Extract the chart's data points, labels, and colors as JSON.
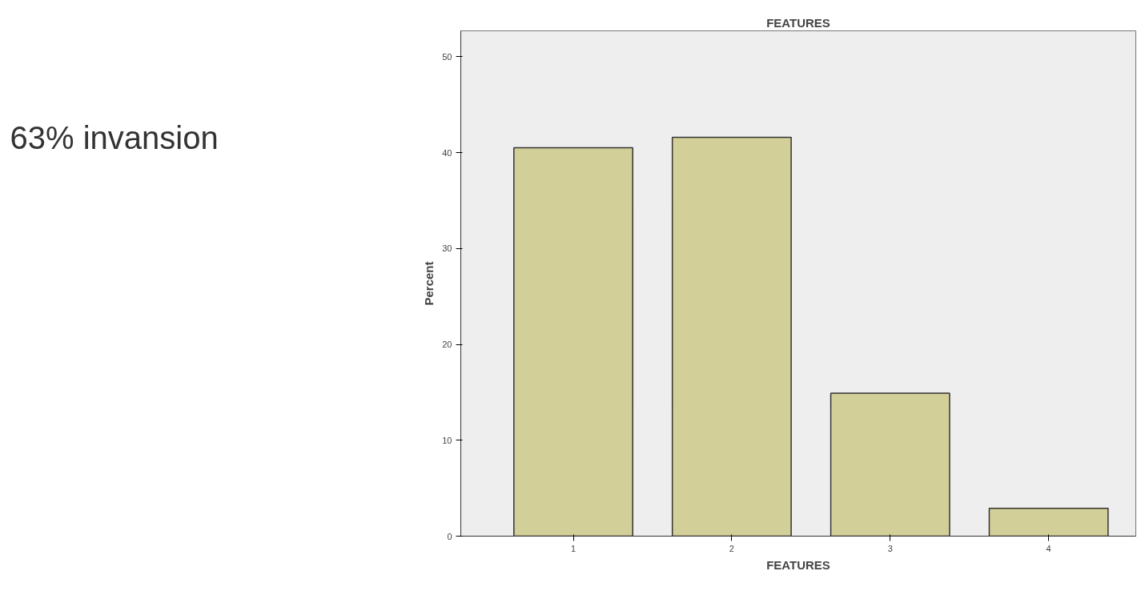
{
  "chart_data": {
    "type": "bar",
    "title": "FEATURES",
    "xlabel": "FEATURES",
    "ylabel": "Percent",
    "categories": [
      "1",
      "2",
      "3",
      "4"
    ],
    "values": [
      40.5,
      41.6,
      14.9,
      2.9
    ],
    "color": "#d3cf98",
    "ylim": [
      0,
      52.7
    ],
    "yticks": [
      0,
      10,
      20,
      30,
      40,
      50
    ],
    "grid": false,
    "annotations": [
      "63% invansion"
    ]
  }
}
